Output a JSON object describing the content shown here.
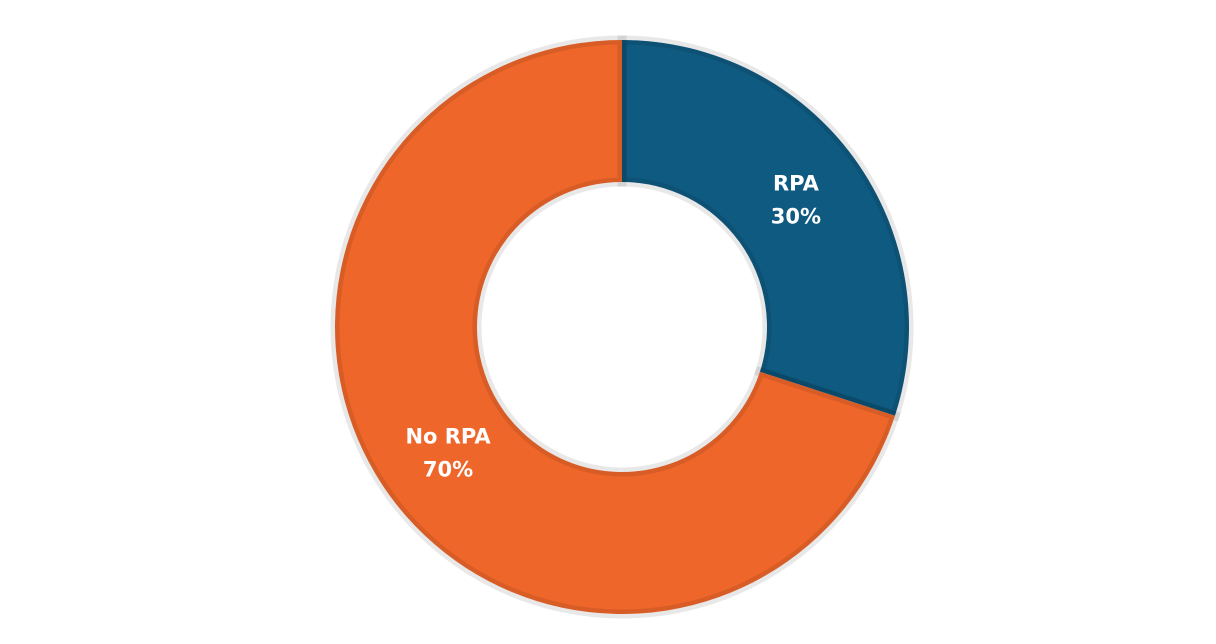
{
  "chart_data": {
    "type": "donut",
    "categories": [
      "RPA",
      "No RPA"
    ],
    "values": [
      30,
      70
    ],
    "value_labels": [
      "30%",
      "70%"
    ],
    "colors": [
      "#0f5a80",
      "#ee6629"
    ]
  }
}
